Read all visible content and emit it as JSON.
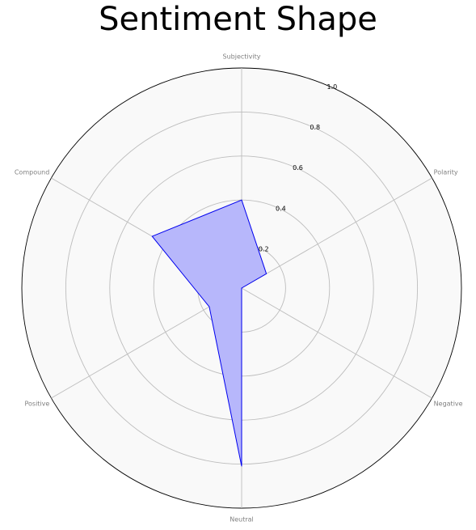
{
  "chart_data": {
    "type": "radar",
    "title": "Sentiment Shape",
    "axes": [
      "Subjectivity",
      "Polarity",
      "Negative",
      "Neutral",
      "Positive",
      "Compound"
    ],
    "values": [
      0.4,
      0.13,
      0.0,
      0.81,
      0.17,
      0.47
    ],
    "rlim": [
      0,
      1.0
    ],
    "r_ticks": [
      0.2,
      0.4,
      0.6,
      0.8,
      1.0
    ],
    "grid": true,
    "colors": {
      "fill": "#b7b7fb",
      "line": "#0000ee",
      "background": "#f9f9f9",
      "grid": "#bdbdbd",
      "outer": "#000000"
    }
  }
}
